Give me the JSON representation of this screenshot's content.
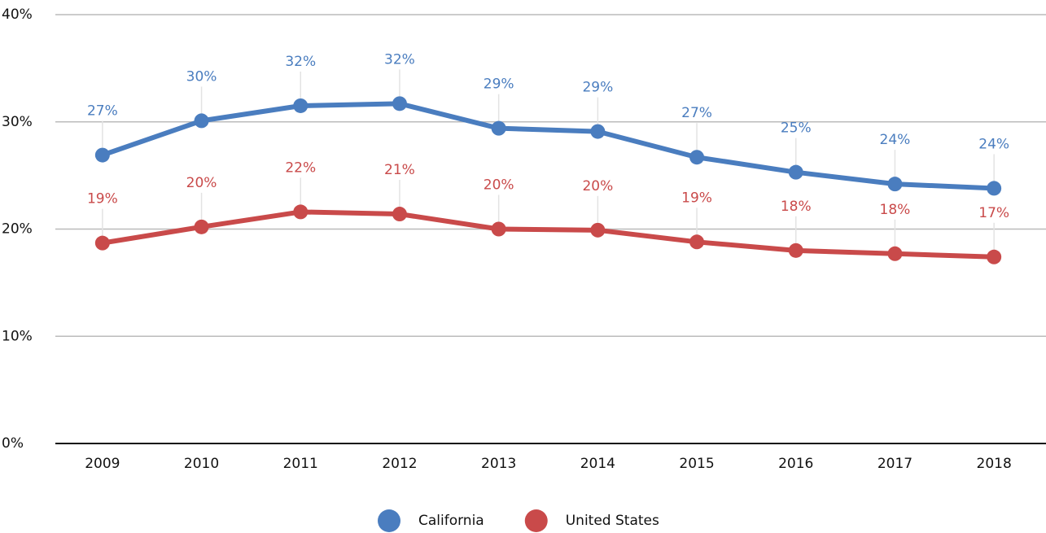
{
  "chart_data": {
    "type": "line",
    "x": [
      "2009",
      "2010",
      "2011",
      "2012",
      "2013",
      "2014",
      "2015",
      "2016",
      "2017",
      "2018"
    ],
    "series": [
      {
        "name": "California",
        "color": "#4a7dbf",
        "values": [
          26.9,
          30.1,
          31.5,
          31.7,
          29.4,
          29.1,
          26.7,
          25.3,
          24.2,
          23.8
        ],
        "value_labels": [
          "27%",
          "30%",
          "32%",
          "32%",
          "29%",
          "29%",
          "27%",
          "25%",
          "24%",
          "24%"
        ]
      },
      {
        "name": "United States",
        "color": "#c94a4a",
        "values": [
          18.7,
          20.2,
          21.6,
          21.4,
          20.0,
          19.9,
          18.8,
          18.0,
          17.7,
          17.4
        ],
        "value_labels": [
          "19%",
          "20%",
          "22%",
          "21%",
          "20%",
          "20%",
          "19%",
          "18%",
          "18%",
          "17%"
        ]
      }
    ],
    "ylim": [
      0,
      40
    ],
    "yticks": [
      {
        "value": 0,
        "label": "0%"
      },
      {
        "value": 10,
        "label": "10%"
      },
      {
        "value": 20,
        "label": "20%"
      },
      {
        "value": 30,
        "label": "30%"
      },
      {
        "value": 40,
        "label": "40%"
      }
    ],
    "grid": true,
    "legend": "bottom"
  }
}
